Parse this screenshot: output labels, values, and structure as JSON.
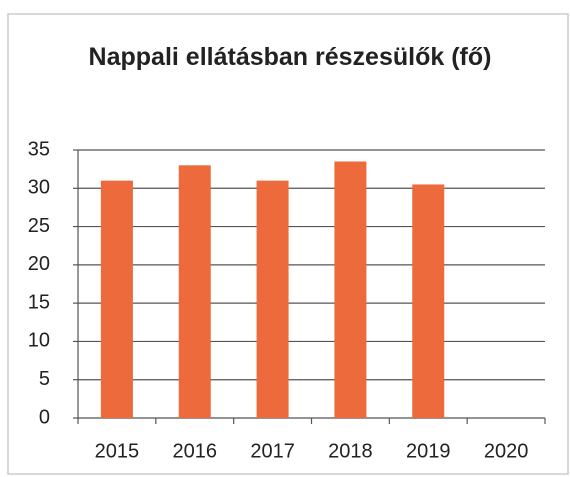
{
  "chart_data": {
    "type": "bar",
    "title": "Nappali ellátásban részesülők (fő)",
    "categories": [
      "2015",
      "2016",
      "2017",
      "2018",
      "2019",
      "2020"
    ],
    "values": [
      31,
      33,
      31,
      33.5,
      30.5,
      null
    ],
    "color": "#ec6a3b",
    "ylim": [
      0,
      35
    ],
    "yticks": [
      0,
      5,
      10,
      15,
      20,
      25,
      30,
      35
    ],
    "grid": true
  }
}
